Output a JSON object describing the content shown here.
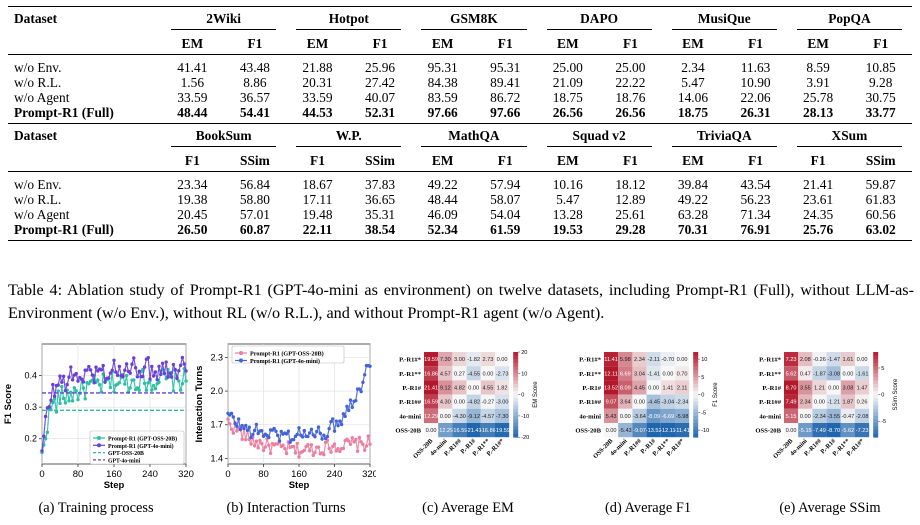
{
  "table": {
    "dataset_label": "Dataset",
    "blocks": [
      {
        "datasets": [
          {
            "name": "2Wiki",
            "metrics": [
              "EM",
              "F1"
            ]
          },
          {
            "name": "Hotpot",
            "metrics": [
              "EM",
              "F1"
            ]
          },
          {
            "name": "GSM8K",
            "metrics": [
              "EM",
              "F1"
            ]
          },
          {
            "name": "DAPO",
            "metrics": [
              "EM",
              "F1"
            ]
          },
          {
            "name": "MusiQue",
            "metrics": [
              "EM",
              "F1"
            ]
          },
          {
            "name": "PopQA",
            "metrics": [
              "EM",
              "F1"
            ]
          }
        ],
        "rows": [
          {
            "label": "w/o Env.",
            "values": [
              "41.41",
              "43.48",
              "21.88",
              "25.96",
              "95.31",
              "95.31",
              "25.00",
              "25.00",
              "2.34",
              "11.63",
              "8.59",
              "10.85"
            ]
          },
          {
            "label": "w/o R.L.",
            "values": [
              "1.56",
              "8.86",
              "20.31",
              "27.42",
              "84.38",
              "89.41",
              "21.09",
              "22.22",
              "5.47",
              "10.90",
              "3.91",
              "9.28"
            ]
          },
          {
            "label": "w/o Agent",
            "values": [
              "33.59",
              "36.57",
              "33.59",
              "40.07",
              "83.59",
              "86.72",
              "18.75",
              "18.76",
              "14.06",
              "22.06",
              "25.78",
              "30.75"
            ]
          },
          {
            "label": "Prompt-R1 (Full)",
            "bold": true,
            "values": [
              "48.44",
              "54.41",
              "44.53",
              "52.31",
              "97.66",
              "97.66",
              "26.56",
              "26.56",
              "18.75",
              "26.31",
              "28.13",
              "33.77"
            ]
          }
        ]
      },
      {
        "datasets": [
          {
            "name": "BookSum",
            "metrics": [
              "F1",
              "SSim"
            ]
          },
          {
            "name": "W.P.",
            "metrics": [
              "F1",
              "SSim"
            ]
          },
          {
            "name": "MathQA",
            "metrics": [
              "EM",
              "F1"
            ]
          },
          {
            "name": "Squad v2",
            "metrics": [
              "EM",
              "F1"
            ]
          },
          {
            "name": "TriviaQA",
            "metrics": [
              "EM",
              "F1"
            ]
          },
          {
            "name": "XSum",
            "metrics": [
              "F1",
              "SSim"
            ]
          }
        ],
        "rows": [
          {
            "label": "w/o Env.",
            "values": [
              "23.34",
              "56.84",
              "18.67",
              "37.83",
              "49.22",
              "57.94",
              "10.16",
              "18.12",
              "39.84",
              "43.54",
              "21.41",
              "59.87"
            ]
          },
          {
            "label": "w/o R.L.",
            "values": [
              "19.38",
              "58.80",
              "17.11",
              "36.65",
              "48.44",
              "58.07",
              "5.47",
              "12.89",
              "49.22",
              "56.23",
              "23.61",
              "61.83"
            ]
          },
          {
            "label": "w/o Agent",
            "values": [
              "20.45",
              "57.01",
              "19.48",
              "35.31",
              "46.09",
              "54.04",
              "13.28",
              "25.61",
              "63.28",
              "71.34",
              "24.35",
              "60.56"
            ]
          },
          {
            "label": "Prompt-R1 (Full)",
            "bold": true,
            "values": [
              "26.50",
              "60.87",
              "22.11",
              "38.54",
              "52.34",
              "61.59",
              "19.53",
              "29.28",
              "70.31",
              "76.91",
              "25.76",
              "63.02"
            ]
          }
        ]
      }
    ]
  },
  "caption": "Table 4: Ablation study of Prompt-R1 (GPT-4o-mini as environment) on twelve datasets, including Prompt-R1 (Full), without LLM-as-Environment (w/o Env.), without RL (w/o R.L.), and without Prompt-R1 agent (w/o Agent).",
  "subcaptions": [
    "(a) Training process",
    "(b) Interaction Turns",
    "(c) Average EM",
    "(d) Average F1",
    "(e) Average SSim"
  ],
  "colors": {
    "green": "#2cbfa4",
    "purple": "#6a3fd6",
    "pink": "#ea7fa0",
    "blue": "#4463d9",
    "red_high": "#b2182b",
    "blue_low": "#2166ac"
  },
  "chart_data": [
    {
      "type": "line",
      "xlabel": "Step",
      "ylabel": "F1 Score",
      "x_ticks": [
        "0",
        "80",
        "160",
        "240",
        "320"
      ],
      "y_ticks": [
        "0.2",
        "0.3",
        "0.4"
      ],
      "xlim": [
        0,
        320
      ],
      "ylim": [
        0.12,
        0.5
      ],
      "legend": "lower-right",
      "series": [
        {
          "name": "Prompt-R1 (GPT-OSS-20B)",
          "color": "#2cbfa4",
          "x": [
            0,
            10,
            20,
            30,
            40,
            60,
            80,
            100,
            120,
            140,
            160,
            180,
            200,
            220,
            240,
            260,
            280,
            300,
            320
          ],
          "values": [
            0.14,
            0.24,
            0.3,
            0.31,
            0.33,
            0.34,
            0.35,
            0.36,
            0.37,
            0.37,
            0.38,
            0.38,
            0.38,
            0.39,
            0.38,
            0.39,
            0.39,
            0.38,
            0.39
          ]
        },
        {
          "name": "Prompt-R1 (GPT-4o-mini)",
          "color": "#6a3fd6",
          "x": [
            0,
            10,
            20,
            30,
            40,
            60,
            80,
            100,
            120,
            140,
            160,
            180,
            200,
            220,
            240,
            260,
            280,
            300,
            320
          ],
          "values": [
            0.15,
            0.27,
            0.34,
            0.36,
            0.38,
            0.39,
            0.4,
            0.4,
            0.41,
            0.41,
            0.42,
            0.41,
            0.42,
            0.43,
            0.42,
            0.42,
            0.43,
            0.42,
            0.43
          ]
        },
        {
          "name": "GPT-OSS-20B",
          "color": "#2cbfa4",
          "dashed": true,
          "x": [
            0,
            320
          ],
          "values": [
            0.29,
            0.29
          ]
        },
        {
          "name": "GPT-4o-mini",
          "color": "#6a3fd6",
          "dashed": true,
          "x": [
            0,
            320
          ],
          "values": [
            0.345,
            0.345
          ]
        }
      ]
    },
    {
      "type": "line",
      "xlabel": "Step",
      "ylabel": "Interaction Turns",
      "x_ticks": [
        "0",
        "80",
        "160",
        "240",
        "320"
      ],
      "y_ticks": [
        "1.4",
        "1.7",
        "2.0",
        "2.3"
      ],
      "xlim": [
        0,
        320
      ],
      "ylim": [
        1.35,
        2.42
      ],
      "legend": "top",
      "series": [
        {
          "name": "Prompt-R1 (GPT-OSS-20B)",
          "color": "#ea7fa0",
          "x": [
            0,
            20,
            40,
            60,
            80,
            100,
            120,
            140,
            160,
            180,
            200,
            220,
            240,
            260,
            280,
            300,
            320
          ],
          "values": [
            1.72,
            1.66,
            1.6,
            1.55,
            1.52,
            1.5,
            1.49,
            1.48,
            1.47,
            1.48,
            1.49,
            1.5,
            1.52,
            1.51,
            1.53,
            1.52,
            1.54
          ]
        },
        {
          "name": "Prompt-R1 (GPT-4o-mini)",
          "color": "#4463d9",
          "x": [
            0,
            20,
            40,
            60,
            80,
            100,
            120,
            140,
            160,
            180,
            200,
            220,
            240,
            260,
            280,
            300,
            320
          ],
          "values": [
            1.78,
            1.72,
            1.66,
            1.64,
            1.63,
            1.62,
            1.61,
            1.6,
            1.62,
            1.62,
            1.61,
            1.64,
            1.7,
            1.78,
            1.92,
            2.05,
            2.25
          ]
        }
      ]
    },
    {
      "type": "heatmap",
      "title": "",
      "colorbar_label": "EM Score",
      "colorbar_ticks": [
        "20",
        "10",
        "0",
        "-10",
        "-20"
      ],
      "range": [
        -20,
        20
      ],
      "rows": [
        "P.-R1#*",
        "P.-R1**",
        "P.-R1#",
        "P.-R1##",
        "4o-mini",
        "OSS-20B"
      ],
      "cols": [
        "OSS-20B",
        "4o-mini",
        "P.-R1##",
        "P.-R1#",
        "P.-R1**",
        "P.-R1#*"
      ],
      "labels": [
        [
          "19.59",
          "7.30",
          "3.00",
          "-1.82",
          "2.73",
          "0.00"
        ],
        [
          "16.86",
          "4.57",
          "0.27",
          "-4.55",
          "0.00",
          "-2.73"
        ],
        [
          "21.41",
          "9.12",
          "4.82",
          "0.00",
          "4.55",
          "1.82"
        ],
        [
          "16.59",
          "4.30",
          "0.00",
          "-4.82",
          "-0.27",
          "-3.00"
        ],
        [
          "12.29",
          "0.00",
          "-4.30",
          "-9.12",
          "-4.57",
          "-7.30"
        ],
        [
          "0.00",
          "-12.29",
          "-16.59",
          "-21.41",
          "-16.86",
          "-19.59"
        ]
      ],
      "values": [
        [
          19.59,
          7.3,
          3.0,
          -1.82,
          2.73,
          0.0
        ],
        [
          16.86,
          4.57,
          0.27,
          -4.55,
          0.0,
          -2.73
        ],
        [
          21.41,
          9.12,
          4.82,
          0.0,
          4.55,
          1.82
        ],
        [
          16.59,
          4.3,
          0.0,
          -4.82,
          -0.27,
          -3.0
        ],
        [
          12.29,
          0.0,
          -4.3,
          -9.12,
          -4.57,
          -7.3
        ],
        [
          0.0,
          -12.29,
          -16.59,
          -21.41,
          -16.86,
          -19.59
        ]
      ]
    },
    {
      "type": "heatmap",
      "colorbar_label": "F1 Score",
      "colorbar_ticks": [
        "10",
        "5",
        "0",
        "-5",
        "-10"
      ],
      "range": [
        -12,
        12
      ],
      "rows": [
        "P.-R1#*",
        "P.-R1**",
        "P.-R1#",
        "P.-R1##",
        "4o-mini",
        "OSS-20B"
      ],
      "cols": [
        "OSS-20B",
        "4o-mini",
        "P.-R1##",
        "P.-R1#",
        "P.-R1**",
        "P.-R1#*"
      ],
      "labels": [
        [
          "11.41",
          "5.98",
          "2.34",
          "-2.11",
          "-0.70",
          "0.00"
        ],
        [
          "12.11",
          "6.69",
          "3.04",
          "-1.41",
          "0.00",
          "0.70"
        ],
        [
          "13.52",
          "8.09",
          "4.45",
          "0.00",
          "1.41",
          "2.11"
        ],
        [
          "9.07",
          "3.64",
          "0.00",
          "-4.45",
          "-3.04",
          "-2.34"
        ],
        [
          "5.43",
          "0.00",
          "-3.64",
          "-8.09",
          "-6.69",
          "-5.98"
        ],
        [
          "0.00",
          "-5.43",
          "-9.07",
          "-13.52",
          "-12.11",
          "-11.41"
        ]
      ],
      "values": [
        [
          11.41,
          5.98,
          2.34,
          -2.11,
          -0.7,
          0.0
        ],
        [
          12.11,
          6.69,
          3.04,
          -1.41,
          0.0,
          0.7
        ],
        [
          13.52,
          8.09,
          4.45,
          0.0,
          1.41,
          2.11
        ],
        [
          9.07,
          3.64,
          0.0,
          -4.45,
          -3.04,
          -2.34
        ],
        [
          5.43,
          0.0,
          -3.64,
          -8.09,
          -6.69,
          -5.98
        ],
        [
          0.0,
          -5.43,
          -9.07,
          -13.52,
          -12.11,
          -11.41
        ]
      ]
    },
    {
      "type": "heatmap",
      "colorbar_label": "SSim Score",
      "colorbar_ticks": [
        "5",
        "0",
        "-5"
      ],
      "range": [
        -8,
        8
      ],
      "rows": [
        "P.-R1#*",
        "P.-R1**",
        "P.-R1#",
        "P.-R1##",
        "4o-mini",
        "OSS-20B"
      ],
      "cols": [
        "OSS-20B",
        "4o-mini",
        "P.-R1##",
        "P.-R1#",
        "P.-R1**",
        "P.-R1#*"
      ],
      "labels": [
        [
          "7.23",
          "2.08",
          "-0.26",
          "-1.47",
          "1.61",
          "0.00"
        ],
        [
          "5.62",
          "0.47",
          "-1.87",
          "-3.08",
          "0.00",
          "-1.61"
        ],
        [
          "8.70",
          "3.55",
          "1.21",
          "0.00",
          "3.08",
          "1.47"
        ],
        [
          "7.49",
          "2.34",
          "0.00",
          "-1.21",
          "1.87",
          "0.26"
        ],
        [
          "5.15",
          "0.00",
          "-2.34",
          "-3.55",
          "-0.47",
          "-2.08"
        ],
        [
          "0.00",
          "-5.15",
          "-7.49",
          "-8.70",
          "-5.62",
          "-7.23"
        ]
      ],
      "values": [
        [
          7.23,
          2.08,
          -0.26,
          -1.47,
          1.61,
          0.0
        ],
        [
          5.62,
          0.47,
          -1.87,
          -3.08,
          0.0,
          -1.61
        ],
        [
          8.7,
          3.55,
          1.21,
          0.0,
          3.08,
          1.47
        ],
        [
          7.49,
          2.34,
          0.0,
          -1.21,
          1.87,
          0.26
        ],
        [
          5.15,
          0.0,
          -2.34,
          -3.55,
          -0.47,
          -2.08
        ],
        [
          0.0,
          -5.15,
          -7.49,
          -8.7,
          -5.62,
          -7.23
        ]
      ]
    }
  ]
}
